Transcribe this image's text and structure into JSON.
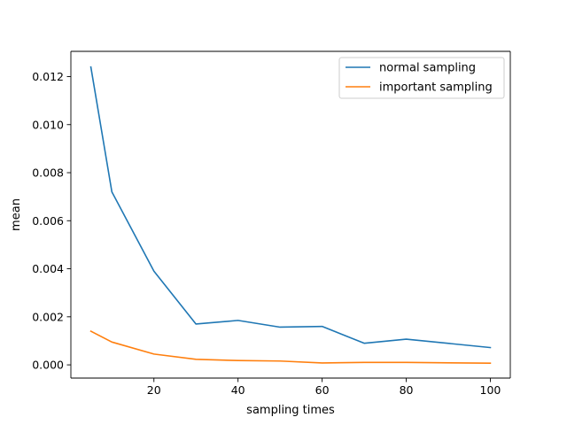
{
  "chart_data": {
    "type": "line",
    "title": "",
    "xlabel": "sampling times",
    "ylabel": "mean",
    "xlim": [
      0.25,
      104.75
    ],
    "ylim": [
      -0.00055,
      0.01305
    ],
    "xticks": [
      20,
      40,
      60,
      80,
      100
    ],
    "xtick_labels": [
      "20",
      "40",
      "60",
      "80",
      "100"
    ],
    "yticks": [
      0.0,
      0.002,
      0.004,
      0.006,
      0.008,
      0.01,
      0.012
    ],
    "ytick_labels": [
      "0.000",
      "0.002",
      "0.004",
      "0.006",
      "0.008",
      "0.010",
      "0.012"
    ],
    "grid": false,
    "legend_position": "top-right",
    "series": [
      {
        "name": "normal sampling",
        "color": "#1f77b4",
        "x": [
          5,
          10,
          20,
          30,
          40,
          50,
          60,
          70,
          80,
          100
        ],
        "y": [
          0.0124,
          0.0072,
          0.0039,
          0.0017,
          0.00185,
          0.00157,
          0.0016,
          0.0009,
          0.00107,
          0.00072
        ]
      },
      {
        "name": "important sampling",
        "color": "#ff7f0e",
        "x": [
          5,
          10,
          20,
          30,
          40,
          50,
          60,
          70,
          80,
          100
        ],
        "y": [
          0.0014,
          0.00095,
          0.00045,
          0.00023,
          0.00018,
          0.00016,
          8e-05,
          0.0001,
          0.0001,
          7e-05
        ]
      }
    ]
  }
}
